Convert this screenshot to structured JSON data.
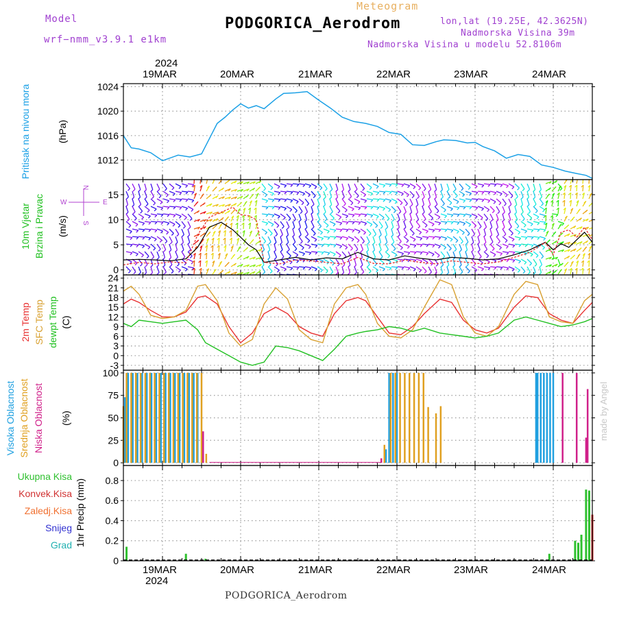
{
  "header": {
    "model_label": "Model",
    "model_name": "wrf−nmm_v3.9.1  e1km",
    "product": "Meteogram",
    "station": "PODGORICA_Aerodrom",
    "lonlat": "lon,lat (19.25E, 42.3625N)",
    "elevation": "Nadmorska Visina 39m",
    "model_elevation": "Nadmorska Visina u modelu 52.8106m"
  },
  "top_axis": {
    "year": "2024",
    "dates": [
      "19MAR",
      "20MAR",
      "21MAR",
      "22MAR",
      "23MAR",
      "24MAR"
    ]
  },
  "bottom_axis": {
    "year": "2024",
    "dates": [
      "19MAR",
      "20MAR",
      "21MAR",
      "22MAR",
      "23MAR",
      "24MAR"
    ]
  },
  "footer": {
    "station": "PODGORICA_Aerodrom"
  },
  "credit": "made by Angel",
  "colors": {
    "pressure": "#1aa0e6",
    "temp2m": "#e83030",
    "sfcTemp": "#d8a030",
    "dewpt": "#20c020",
    "high_cloud": "#20a0e0",
    "mid_cloud": "#e0a020",
    "low_cloud": "#d0208a",
    "precip_total": "#2fc02f",
    "precip_conv": "#d03030",
    "snow": "#3030d0",
    "hail": "#20b0b0",
    "grid": "#999999"
  },
  "panels": {
    "pressure": {
      "labels": [
        "Pritisak na nivou mora",
        "(hPa)"
      ]
    },
    "wind": {
      "labels": [
        "10m Vjetar",
        "Brzina i Pravac",
        "(m/s)"
      ],
      "compass": {
        "n": "N",
        "s": "S",
        "w": "W",
        "e": "E"
      }
    },
    "temp": {
      "labels": [
        "2m Temp",
        "SFC Temp",
        "dewpt Temp",
        "(C)"
      ]
    },
    "cloud": {
      "labels": [
        "Visoka Oblacnost",
        "Srednja Oblacnost",
        "Niska Oblacnost",
        "(%)"
      ]
    },
    "precip": {
      "labels": [
        "Ukupna Kisa",
        "Konvek.Kisa",
        "Zaledj.Kisa",
        "Snijeg",
        "Grad",
        "1hr Precip (mm)"
      ]
    }
  },
  "chart_data": [
    {
      "type": "line",
      "name": "pressure",
      "xlabel": "",
      "ylabel": "(hPa)",
      "x_units": "days since 18 MAR 00Z",
      "xlim": [
        0.5,
        6.5
      ],
      "ylim": [
        1008.8,
        1024.5
      ],
      "yticks": [
        1012,
        1016,
        1020,
        1024
      ],
      "xticks": [
        1.0,
        2.0,
        3.0,
        4.0,
        5.0,
        6.0
      ],
      "grid": true,
      "series": [
        {
          "name": "pressure",
          "color": "#1aa0e6",
          "x": [
            0.5,
            0.6,
            0.7,
            0.85,
            1.0,
            1.2,
            1.35,
            1.5,
            1.6,
            1.7,
            1.8,
            1.9,
            2.0,
            2.1,
            2.2,
            2.3,
            2.45,
            2.55,
            2.7,
            2.85,
            3.0,
            3.15,
            3.3,
            3.45,
            3.6,
            3.75,
            3.9,
            4.05,
            4.2,
            4.35,
            4.5,
            4.6,
            4.75,
            4.9,
            5.0,
            5.1,
            5.25,
            5.4,
            5.55,
            5.7,
            5.85,
            6.0,
            6.15,
            6.3,
            6.42,
            6.5
          ],
          "y": [
            1016.0,
            1014.0,
            1013.8,
            1013.2,
            1011.9,
            1012.8,
            1012.5,
            1013.0,
            1015.5,
            1018.0,
            1019.0,
            1020.2,
            1021.2,
            1020.5,
            1020.9,
            1020.4,
            1022.0,
            1022.9,
            1023.0,
            1023.2,
            1021.8,
            1020.5,
            1019.0,
            1018.3,
            1018.0,
            1017.5,
            1016.5,
            1016.2,
            1014.5,
            1014.4,
            1015.0,
            1015.3,
            1015.2,
            1014.8,
            1014.9,
            1014.2,
            1013.5,
            1012.3,
            1012.9,
            1012.6,
            1011.2,
            1010.8,
            1010.2,
            1009.8,
            1009.5,
            1009.0
          ]
        }
      ]
    },
    {
      "type": "line",
      "name": "wind",
      "ylabel": "(m/s)",
      "xlim": [
        0.5,
        6.5
      ],
      "ylim": [
        -1,
        18
      ],
      "yticks": [
        0,
        5,
        10,
        15
      ],
      "grid": true,
      "series": [
        {
          "name": "wind speed",
          "color": "#000000",
          "x": [
            0.5,
            0.7,
            0.9,
            1.1,
            1.3,
            1.45,
            1.6,
            1.75,
            1.9,
            2.0,
            2.1,
            2.2,
            2.3,
            2.5,
            2.7,
            2.9,
            3.1,
            3.3,
            3.5,
            3.7,
            3.9,
            4.1,
            4.3,
            4.5,
            4.7,
            4.9,
            5.1,
            5.3,
            5.5,
            5.7,
            5.9,
            6.0,
            6.1,
            6.2,
            6.3,
            6.4,
            6.5
          ],
          "y": [
            2.0,
            2.1,
            2.0,
            1.8,
            2.2,
            4.5,
            8.5,
            9.5,
            8.0,
            6.5,
            5.0,
            4.0,
            1.5,
            2.0,
            2.5,
            2.0,
            2.4,
            2.2,
            3.5,
            2.2,
            2.0,
            2.8,
            2.3,
            2.0,
            2.5,
            2.3,
            2.0,
            2.2,
            3.0,
            4.0,
            5.5,
            4.0,
            5.2,
            4.5,
            6.0,
            7.5,
            5.5
          ]
        },
        {
          "name": "gust",
          "color": "#e83030",
          "x": [
            0.5,
            0.7,
            0.9,
            1.1,
            1.3,
            1.45,
            1.6,
            1.75,
            1.9,
            2.0,
            2.1,
            2.2,
            2.3,
            2.5,
            2.7,
            2.9,
            3.1,
            3.3,
            3.5,
            3.7,
            3.9,
            4.1,
            4.3,
            4.5,
            4.7,
            4.9,
            5.1,
            5.3,
            5.5,
            5.7,
            5.9,
            6.0,
            6.1,
            6.2,
            6.3,
            6.4,
            6.5
          ],
          "y": [
            1.0,
            1.5,
            1.2,
            1.6,
            1.4,
            7.0,
            10.5,
            11.5,
            12.5,
            11.0,
            10.8,
            10.0,
            1.5,
            1.2,
            2.0,
            1.8,
            1.5,
            1.2,
            2.5,
            1.3,
            1.2,
            2.0,
            1.5,
            1.2,
            1.8,
            1.5,
            1.2,
            1.6,
            2.5,
            3.5,
            5.5,
            3.0,
            7.5,
            8.0,
            6.5,
            8.5,
            6.0
          ]
        }
      ]
    },
    {
      "type": "line",
      "name": "temperature",
      "ylabel": "(C)",
      "xlim": [
        0.5,
        6.5
      ],
      "ylim": [
        -4.5,
        25
      ],
      "yticks": [
        -3,
        0,
        3,
        6,
        9,
        12,
        15,
        18,
        21,
        24
      ],
      "grid": true,
      "series": [
        {
          "name": "2m Temp",
          "color": "#e83030",
          "x": [
            0.5,
            0.6,
            0.7,
            0.85,
            1.0,
            1.15,
            1.3,
            1.45,
            1.55,
            1.7,
            1.85,
            2.0,
            2.15,
            2.3,
            2.45,
            2.6,
            2.75,
            2.9,
            3.05,
            3.2,
            3.35,
            3.5,
            3.6,
            3.75,
            3.9,
            4.05,
            4.2,
            4.35,
            4.55,
            4.7,
            4.85,
            5.0,
            5.15,
            5.3,
            5.5,
            5.65,
            5.8,
            5.95,
            6.1,
            6.25,
            6.4,
            6.5
          ],
          "y": [
            16.0,
            17.5,
            16.5,
            14.0,
            12.0,
            12.0,
            13.5,
            18.0,
            18.5,
            16.0,
            9.0,
            4.0,
            7.0,
            13.0,
            15.0,
            13.0,
            9.0,
            7.0,
            6.0,
            13.0,
            17.0,
            18.0,
            17.0,
            12.0,
            7.0,
            6.5,
            9.0,
            13.0,
            17.5,
            16.5,
            11.0,
            8.0,
            7.0,
            8.5,
            15.0,
            18.5,
            18.0,
            13.0,
            11.0,
            10.0,
            14.0,
            16.5
          ]
        },
        {
          "name": "SFC Temp",
          "color": "#d8a030",
          "x": [
            0.5,
            0.6,
            0.7,
            0.85,
            1.0,
            1.15,
            1.3,
            1.45,
            1.55,
            1.7,
            1.85,
            2.0,
            2.15,
            2.3,
            2.45,
            2.6,
            2.75,
            2.9,
            3.05,
            3.2,
            3.35,
            3.5,
            3.6,
            3.75,
            3.9,
            4.05,
            4.2,
            4.35,
            4.55,
            4.7,
            4.85,
            5.0,
            5.15,
            5.3,
            5.5,
            5.65,
            5.8,
            5.95,
            6.1,
            6.25,
            6.4,
            6.5
          ],
          "y": [
            20.0,
            21.5,
            19.0,
            12.5,
            11.5,
            12.0,
            14.0,
            21.5,
            22.0,
            17.0,
            7.0,
            3.0,
            5.0,
            16.0,
            21.0,
            17.5,
            8.0,
            5.0,
            4.0,
            16.0,
            21.0,
            22.0,
            19.0,
            10.0,
            6.0,
            5.5,
            8.0,
            15.0,
            23.5,
            22.0,
            12.0,
            7.0,
            6.0,
            9.0,
            19.0,
            23.0,
            22.0,
            12.0,
            10.5,
            10.0,
            17.0,
            19.0
          ]
        },
        {
          "name": "dewpt Temp",
          "color": "#20c020",
          "x": [
            0.5,
            0.6,
            0.7,
            0.85,
            1.0,
            1.15,
            1.3,
            1.45,
            1.55,
            1.7,
            1.85,
            2.0,
            2.15,
            2.3,
            2.45,
            2.6,
            2.75,
            2.9,
            3.05,
            3.2,
            3.35,
            3.5,
            3.6,
            3.75,
            3.9,
            4.05,
            4.2,
            4.35,
            4.55,
            4.7,
            4.85,
            5.0,
            5.15,
            5.3,
            5.5,
            5.65,
            5.8,
            5.95,
            6.1,
            6.25,
            6.4,
            6.5
          ],
          "y": [
            10.0,
            9.0,
            11.0,
            10.5,
            10.0,
            10.5,
            11.0,
            8.0,
            4.0,
            2.0,
            0.0,
            -2.0,
            -3.0,
            -2.0,
            3.0,
            2.5,
            1.5,
            0.0,
            -1.5,
            2.0,
            6.0,
            7.0,
            7.5,
            8.0,
            9.0,
            8.5,
            7.5,
            8.5,
            7.0,
            6.5,
            6.0,
            5.5,
            6.0,
            7.0,
            11.0,
            12.0,
            11.0,
            10.0,
            9.0,
            9.5,
            10.5,
            11.5
          ]
        }
      ]
    },
    {
      "type": "bar",
      "name": "cloud cover",
      "ylabel": "(%)",
      "xlim": [
        0.5,
        6.5
      ],
      "ylim": [
        -3,
        103
      ],
      "yticks": [
        0,
        25,
        50,
        75,
        100
      ],
      "grid": true,
      "series": [
        {
          "name": "Visoka Oblacnost",
          "color": "#20a0e0",
          "x": [
            0.52,
            0.56,
            0.62,
            0.68,
            0.74,
            0.8,
            0.86,
            0.92,
            0.98,
            1.04,
            1.1,
            1.16,
            1.22,
            1.28,
            1.34,
            1.4,
            1.45,
            3.86,
            3.9,
            3.95,
            4.0,
            5.78,
            5.8,
            5.84,
            5.88,
            5.92,
            5.96,
            6.0
          ],
          "y": [
            73,
            100,
            100,
            100,
            100,
            100,
            100,
            100,
            100,
            100,
            100,
            100,
            100,
            100,
            100,
            100,
            100,
            15,
            100,
            100,
            100,
            100,
            100,
            100,
            100,
            100,
            100,
            100
          ]
        },
        {
          "name": "Srednja Oblacnost",
          "color": "#e0a020",
          "x": [
            0.5,
            0.54,
            0.6,
            0.66,
            0.72,
            0.78,
            0.84,
            0.9,
            0.96,
            1.02,
            1.08,
            1.14,
            1.2,
            1.26,
            1.32,
            1.38,
            1.44,
            1.5,
            1.56,
            3.84,
            3.92,
            3.98,
            4.04,
            4.1,
            4.16,
            4.22,
            4.28,
            4.34,
            4.4,
            4.5,
            4.56
          ],
          "y": [
            63,
            100,
            100,
            100,
            100,
            100,
            100,
            100,
            100,
            100,
            100,
            100,
            100,
            100,
            100,
            100,
            100,
            100,
            10,
            20,
            100,
            100,
            100,
            100,
            100,
            100,
            100,
            100,
            62,
            55,
            63
          ]
        },
        {
          "name": "Niska Oblacnost",
          "color": "#d0208a",
          "x": [
            1.52,
            3.8,
            6.12,
            6.3,
            6.42,
            6.44
          ],
          "y": [
            35,
            5,
            100,
            100,
            28,
            82
          ]
        }
      ]
    },
    {
      "type": "bar",
      "name": "precip",
      "ylabel": "1hr Precip (mm)",
      "xlim": [
        0.5,
        6.5
      ],
      "ylim": [
        0,
        0.95
      ],
      "yticks": [
        0,
        0.2,
        0.4,
        0.6,
        0.8
      ],
      "grid": true,
      "series": [
        {
          "name": "Ukupna Kisa",
          "color": "#2fc02f",
          "x": [
            0.54,
            1.3,
            1.55,
            5.95,
            6.28,
            6.32,
            6.36,
            6.42,
            6.46
          ],
          "y": [
            0.14,
            0.07,
            0.02,
            0.07,
            0.2,
            0.18,
            0.26,
            0.71,
            0.7
          ]
        },
        {
          "name": "Konvek.Kisa",
          "color": "#d03030",
          "x": [
            6.5
          ],
          "y": [
            0.46
          ]
        }
      ]
    }
  ]
}
